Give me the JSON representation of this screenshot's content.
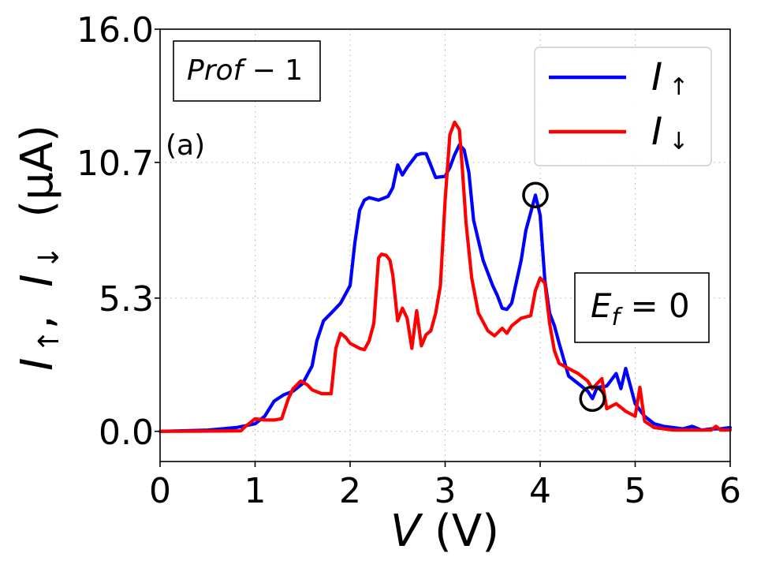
{
  "chart_data": {
    "type": "line",
    "title": "",
    "panel_label": "(a)",
    "xlim": [
      0,
      6
    ],
    "ylim": [
      -1.2,
      16.0
    ],
    "x_ticks": [
      0,
      1,
      2,
      3,
      4,
      5,
      6
    ],
    "x_tick_labels": [
      "0",
      "1",
      "2",
      "3",
      "4",
      "5",
      "6"
    ],
    "y_ticks": [
      0.0,
      5.3,
      10.7,
      16.0
    ],
    "y_tick_labels": [
      "0.0",
      "5.3",
      "10.7",
      "16.0"
    ],
    "grid": true,
    "xlabel": {
      "italic": "V",
      "rest": " (V)"
    },
    "ylabel": {
      "main": "I",
      "up": "↑",
      "sep": ",  ",
      "down": "↓",
      "unit": "  (μA)"
    },
    "legend": {
      "placement": "top-right",
      "entries": [
        {
          "label": "I",
          "sub": "↑",
          "color": "#0000ff"
        },
        {
          "label": "I",
          "sub": "↓",
          "color": "#ff0000"
        }
      ]
    },
    "annotations": {
      "profile": {
        "text": "Prof",
        "rest": " − 1",
        "placement": "top-left"
      },
      "fermi": {
        "main": "E",
        "sub": "f",
        "rest": " = 0",
        "placement": "right"
      },
      "markers": [
        {
          "x": 3.95,
          "y": 9.4,
          "shape": "open-circle"
        },
        {
          "x": 4.55,
          "y": 1.3,
          "shape": "open-circle"
        }
      ]
    },
    "series": [
      {
        "name": "I_up",
        "color": "#0000ff",
        "x": [
          0,
          0.5,
          0.8,
          1.0,
          1.1,
          1.2,
          1.3,
          1.4,
          1.5,
          1.6,
          1.65,
          1.72,
          1.8,
          1.9,
          2.0,
          2.05,
          2.1,
          2.15,
          2.2,
          2.3,
          2.4,
          2.45,
          2.5,
          2.55,
          2.6,
          2.7,
          2.75,
          2.8,
          2.9,
          3.0,
          3.05,
          3.1,
          3.15,
          3.2,
          3.25,
          3.3,
          3.4,
          3.5,
          3.55,
          3.6,
          3.65,
          3.7,
          3.8,
          3.85,
          3.9,
          3.95,
          4.0,
          4.05,
          4.1,
          4.15,
          4.2,
          4.3,
          4.4,
          4.5,
          4.55,
          4.6,
          4.7,
          4.8,
          4.85,
          4.9,
          5.0,
          5.1,
          5.2,
          5.3,
          5.4,
          5.5,
          5.6,
          5.7,
          5.8,
          5.9,
          6.0
        ],
        "values": [
          0,
          0.05,
          0.15,
          0.3,
          0.6,
          1.2,
          1.45,
          1.6,
          1.9,
          2.6,
          3.6,
          4.4,
          4.7,
          5.1,
          5.8,
          7.5,
          8.8,
          9.2,
          9.3,
          9.2,
          9.35,
          9.7,
          10.6,
          10.2,
          10.5,
          11.0,
          11.05,
          11.05,
          10.1,
          10.15,
          10.5,
          11.0,
          11.4,
          11.2,
          10.3,
          8.4,
          6.8,
          5.8,
          5.4,
          4.9,
          4.85,
          5.1,
          6.8,
          8.0,
          8.7,
          9.4,
          8.6,
          6.0,
          4.7,
          4.2,
          3.5,
          2.2,
          1.9,
          1.6,
          1.3,
          1.75,
          1.8,
          2.3,
          1.7,
          2.5,
          1.1,
          0.6,
          0.3,
          0.2,
          0.15,
          0.1,
          0.2,
          0.05,
          0.1,
          0.1,
          0.15
        ]
      },
      {
        "name": "I_down",
        "color": "#ff0000",
        "x": [
          0,
          0.6,
          0.85,
          0.9,
          0.95,
          1.0,
          1.1,
          1.2,
          1.28,
          1.35,
          1.4,
          1.48,
          1.55,
          1.6,
          1.7,
          1.8,
          1.85,
          1.9,
          1.95,
          2.0,
          2.1,
          2.15,
          2.2,
          2.25,
          2.3,
          2.33,
          2.38,
          2.42,
          2.45,
          2.5,
          2.55,
          2.6,
          2.65,
          2.7,
          2.75,
          2.8,
          2.85,
          2.9,
          2.95,
          3.0,
          3.05,
          3.1,
          3.15,
          3.18,
          3.22,
          3.28,
          3.35,
          3.45,
          3.52,
          3.6,
          3.65,
          3.7,
          3.8,
          3.9,
          3.95,
          4.0,
          4.05,
          4.1,
          4.15,
          4.2,
          4.3,
          4.4,
          4.5,
          4.55,
          4.6,
          4.65,
          4.7,
          4.8,
          4.9,
          5.0,
          5.05,
          5.1,
          5.2,
          5.3,
          5.4,
          5.5,
          5.6,
          5.8,
          5.85,
          5.9,
          6.0
        ],
        "values": [
          0,
          0.01,
          0.02,
          0.2,
          0.35,
          0.5,
          0.45,
          0.45,
          0.5,
          1.3,
          1.7,
          2.0,
          1.85,
          1.65,
          1.5,
          1.5,
          3.3,
          3.9,
          3.75,
          3.5,
          3.3,
          3.25,
          3.6,
          4.3,
          6.9,
          7.05,
          7.0,
          6.8,
          6.2,
          4.4,
          4.9,
          4.5,
          3.3,
          4.8,
          3.4,
          3.85,
          4.0,
          4.7,
          5.8,
          9.2,
          11.8,
          12.3,
          12.0,
          10.5,
          8.3,
          6.1,
          4.7,
          4.0,
          3.8,
          4.1,
          3.9,
          4.2,
          4.5,
          4.6,
          5.6,
          6.1,
          5.9,
          4.3,
          3.2,
          2.7,
          2.5,
          2.3,
          2.0,
          1.7,
          1.9,
          2.1,
          0.9,
          1.1,
          0.8,
          0.6,
          1.75,
          0.4,
          0.15,
          0.1,
          0.05,
          0.05,
          0.05,
          0.05,
          0.2,
          0.05,
          0.05
        ]
      }
    ]
  }
}
